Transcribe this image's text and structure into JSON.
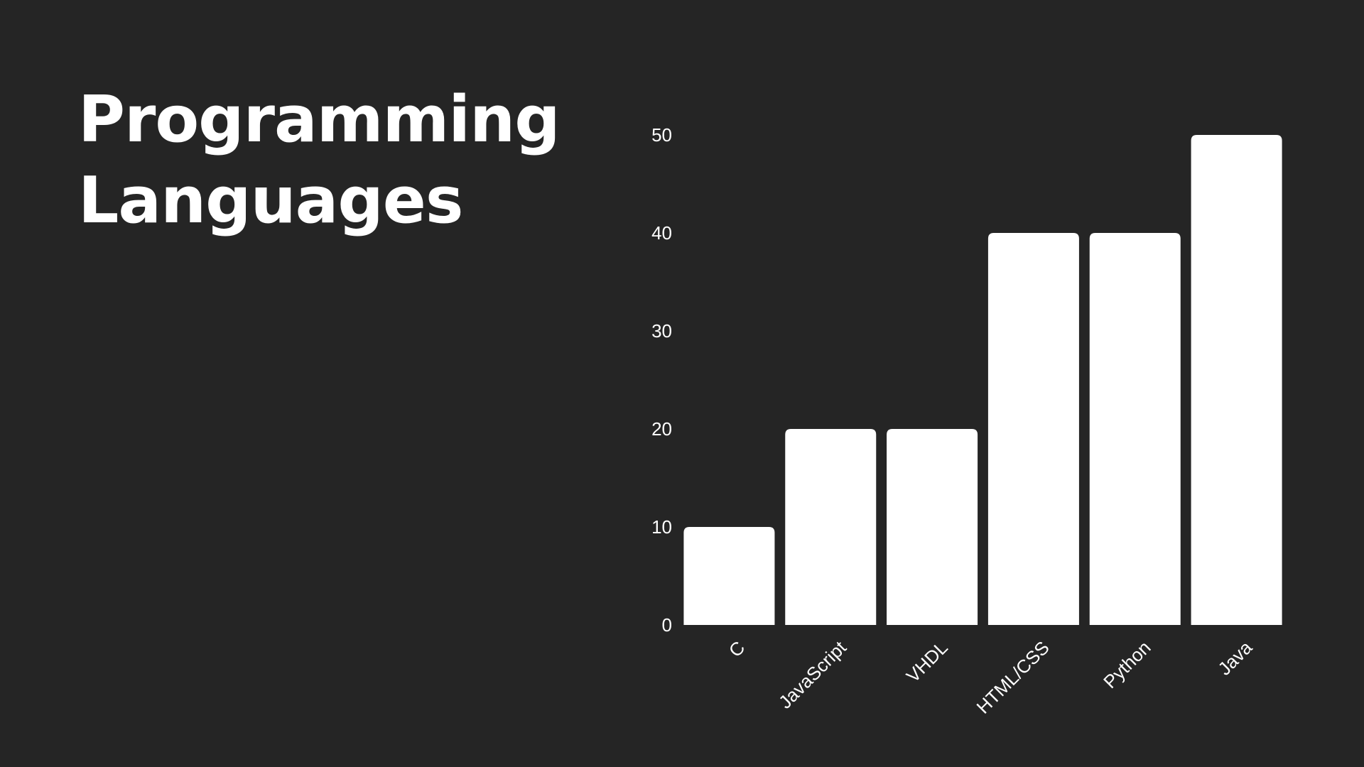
{
  "slide": {
    "title_line1": "Programming",
    "title_line2": "Languages"
  },
  "colors": {
    "background": "#252525",
    "bar": "#ffffff",
    "text": "#ffffff"
  },
  "chart_data": {
    "type": "bar",
    "title": "Programming Languages",
    "categories": [
      "C",
      "JavaScript",
      "VHDL",
      "HTML/CSS",
      "Python",
      "Java"
    ],
    "values": [
      10,
      20,
      20,
      40,
      40,
      50
    ],
    "ylim": [
      0,
      50
    ],
    "yticks": [
      0,
      10,
      20,
      30,
      40,
      50
    ],
    "xlabel": "",
    "ylabel": "",
    "grid": false,
    "legend": "none"
  }
}
